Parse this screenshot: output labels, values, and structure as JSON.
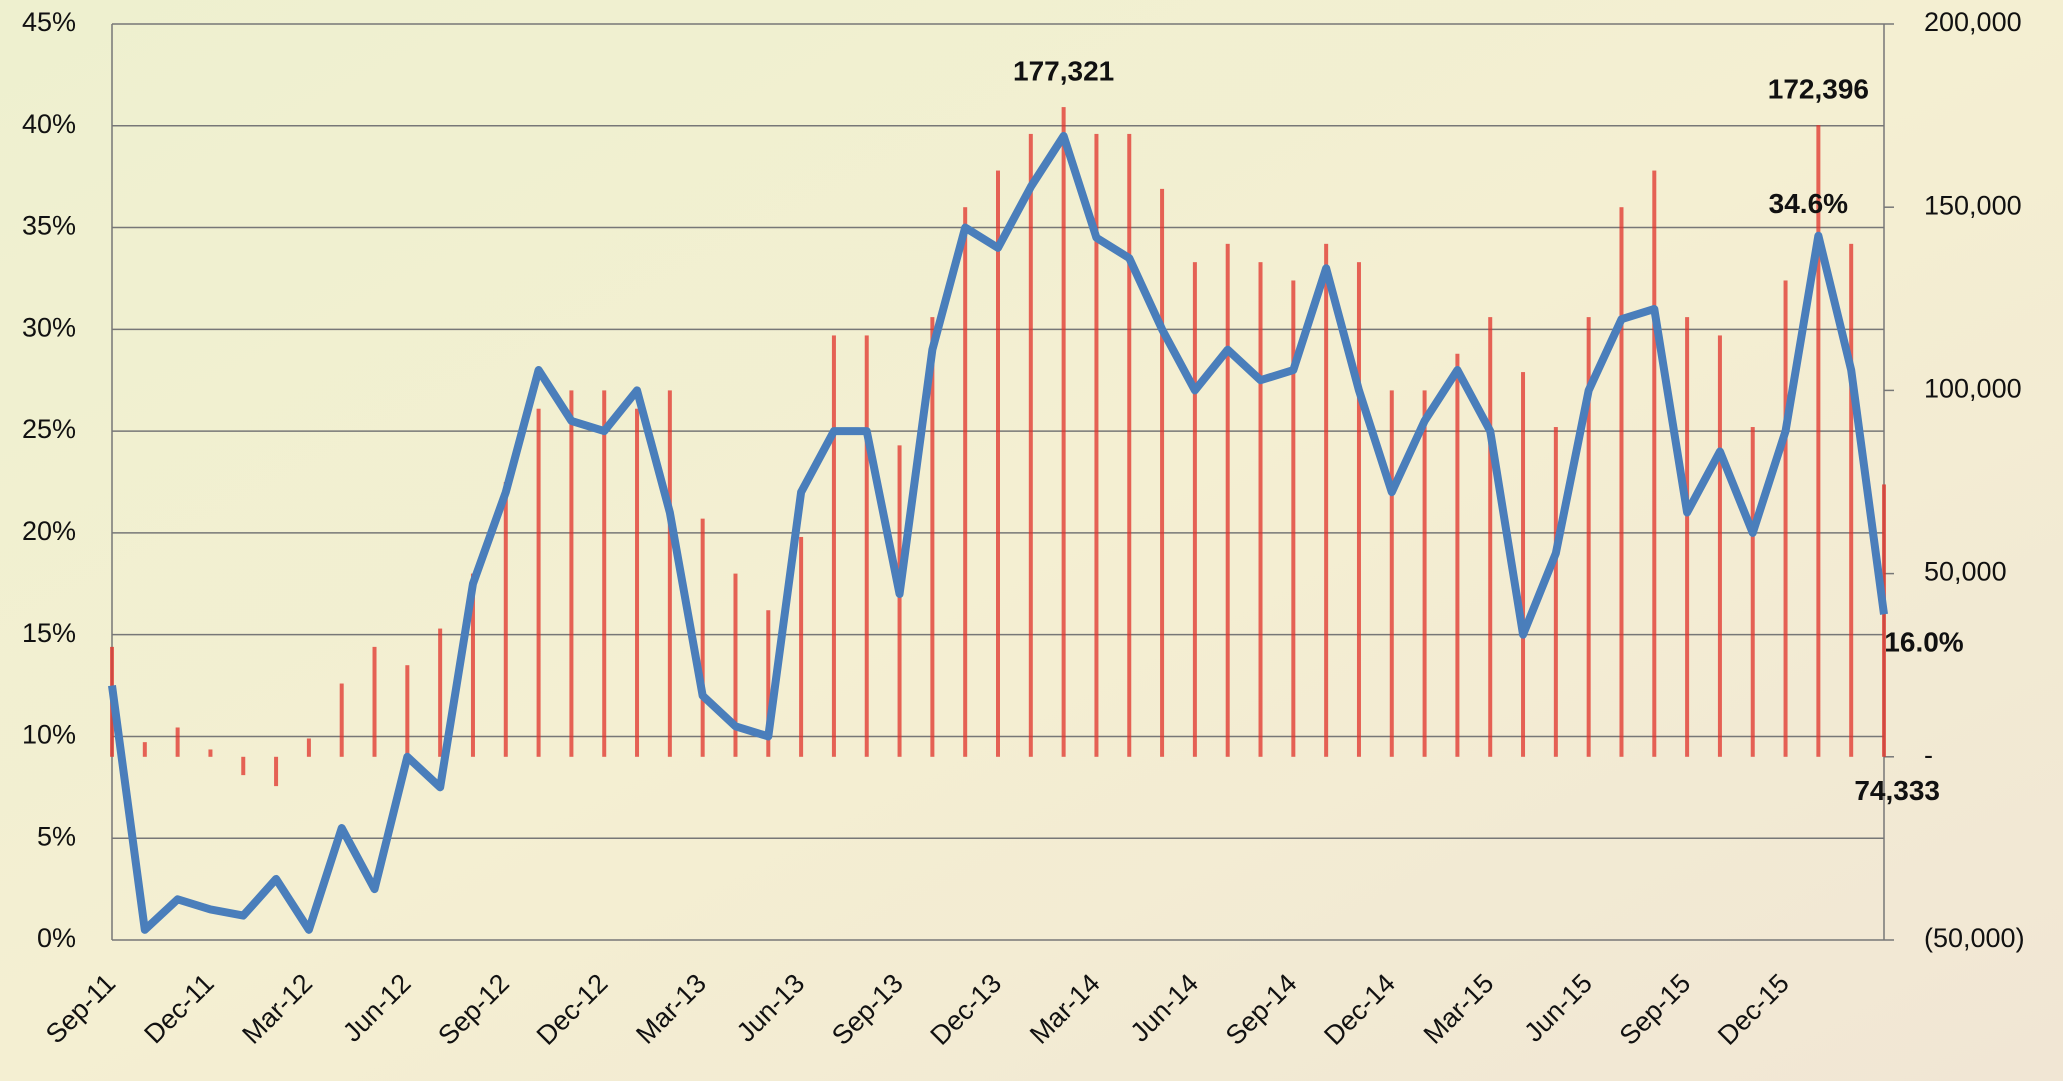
{
  "chart_data": {
    "type": "combo",
    "categories": [
      "Sep-11",
      null,
      null,
      "Dec-11",
      null,
      null,
      "Mar-12",
      null,
      null,
      "Jun-12",
      null,
      null,
      "Sep-12",
      null,
      null,
      "Dec-12",
      null,
      null,
      "Mar-13",
      null,
      null,
      "Jun-13",
      null,
      null,
      "Sep-13",
      null,
      null,
      "Dec-13",
      null,
      null,
      "Mar-14",
      null,
      null,
      "Jun-14",
      null,
      null,
      "Sep-14",
      null,
      null,
      "Dec-14",
      null,
      null,
      "Mar-15",
      null,
      null,
      "Jun-15",
      null,
      null,
      "Sep-15",
      null,
      null,
      "Dec-15",
      null,
      null,
      null
    ],
    "series": [
      {
        "type": "line",
        "color": "#4a7ebb",
        "values": [
          12.5,
          0.5,
          2,
          1.5,
          1.2,
          3,
          0.5,
          5.5,
          2.5,
          9,
          7.5,
          17.5,
          22,
          28,
          25.5,
          25,
          27,
          21,
          12,
          10.5,
          10,
          22,
          25,
          25,
          17,
          29,
          35,
          34,
          37,
          39.5,
          34.5,
          33.5,
          30,
          27,
          29,
          27.5,
          28,
          33,
          27,
          22,
          25.5,
          28,
          25,
          15,
          19,
          27,
          30.5,
          31,
          21,
          24,
          20,
          25,
          34.6,
          28,
          16.0
        ],
        "value_labels": [
          null,
          null,
          null,
          null,
          null,
          null,
          null,
          null,
          null,
          null,
          null,
          null,
          null,
          null,
          null,
          null,
          null,
          null,
          null,
          null,
          null,
          null,
          null,
          null,
          null,
          null,
          null,
          null,
          null,
          null,
          null,
          null,
          null,
          null,
          null,
          null,
          null,
          null,
          null,
          null,
          null,
          null,
          null,
          null,
          null,
          null,
          null,
          null,
          null,
          null,
          null,
          null,
          "34.6%",
          null,
          "16.0%"
        ]
      },
      {
        "type": "bar",
        "axis": "y2",
        "color": "#e0322a",
        "values": [
          30000,
          4000,
          8000,
          2000,
          -5000,
          -8000,
          5000,
          20000,
          30000,
          25000,
          35000,
          50000,
          75000,
          95000,
          100000,
          100000,
          95000,
          100000,
          65000,
          50000,
          40000,
          60000,
          115000,
          115000,
          85000,
          120000,
          150000,
          160000,
          170000,
          177321,
          170000,
          170000,
          155000,
          135000,
          140000,
          135000,
          130000,
          140000,
          135000,
          100000,
          100000,
          110000,
          120000,
          105000,
          90000,
          120000,
          150000,
          160000,
          120000,
          115000,
          90000,
          130000,
          172396,
          140000,
          74333
        ],
        "value_labels": [
          null,
          null,
          null,
          null,
          null,
          null,
          null,
          null,
          null,
          null,
          null,
          null,
          null,
          null,
          null,
          null,
          null,
          null,
          null,
          null,
          null,
          null,
          null,
          null,
          null,
          null,
          null,
          null,
          null,
          "177,321",
          null,
          null,
          null,
          null,
          null,
          null,
          null,
          null,
          null,
          null,
          null,
          null,
          null,
          null,
          null,
          null,
          null,
          null,
          null,
          null,
          null,
          null,
          "172,396",
          null,
          "74,333"
        ]
      }
    ],
    "ylim": [
      0,
      45
    ],
    "yticks": [
      {
        "value": 0,
        "label": "0%"
      },
      {
        "value": 5,
        "label": "5%"
      },
      {
        "value": 10,
        "label": "10%"
      },
      {
        "value": 15,
        "label": "15%"
      },
      {
        "value": 20,
        "label": "20%"
      },
      {
        "value": 25,
        "label": "25%"
      },
      {
        "value": 30,
        "label": "30%"
      },
      {
        "value": 35,
        "label": "35%"
      },
      {
        "value": 40,
        "label": "40%"
      },
      {
        "value": 45,
        "label": "45%"
      }
    ],
    "y2lim": [
      -50000,
      200000
    ],
    "y2ticks": [
      {
        "value": -50000,
        "label": "(50,000)"
      },
      {
        "value": 0,
        "label": "-"
      },
      {
        "value": 50000,
        "label": "50,000"
      },
      {
        "value": 100000,
        "label": "100,000"
      },
      {
        "value": 150000,
        "label": "150,000"
      },
      {
        "value": 200000,
        "label": "200,000"
      }
    ],
    "grid": true
  }
}
